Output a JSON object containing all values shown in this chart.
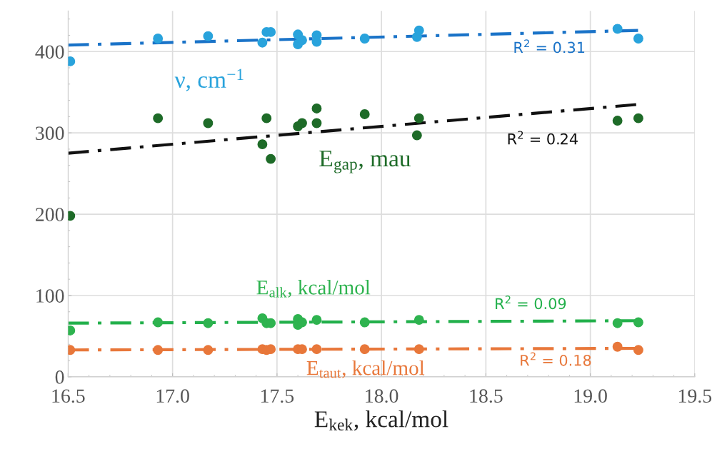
{
  "chart_data": {
    "type": "scatter",
    "xlabel": "E$_{kek}$, kcal/mol",
    "xlim": [
      16.5,
      19.5
    ],
    "ylim": [
      0,
      450
    ],
    "xticks": [
      16.5,
      {
        "value": 17.0,
        "label": "17.0"
      },
      17.5,
      {
        "value": 18.0,
        "label": "18.0"
      },
      18.5,
      {
        "value": 19.0,
        "label": "19.0"
      },
      19.5
    ],
    "yticks": [
      0,
      100,
      200,
      300,
      400
    ],
    "grid": true,
    "marker": "circle",
    "series": [
      {
        "name": "ν, cm$^{−1}$",
        "color": "#29a3dc",
        "x": [
          16.51,
          16.93,
          17.17,
          17.43,
          17.45,
          17.47,
          17.6,
          17.6,
          17.62,
          17.69,
          17.69,
          17.92,
          18.17,
          18.18,
          19.13,
          19.23
        ],
        "values": [
          388,
          416,
          419,
          411,
          424,
          424,
          421,
          409,
          414,
          420,
          412,
          416,
          418,
          426,
          428,
          416
        ]
      },
      {
        "name": "R$^{2}$ = 0.31",
        "type": "line",
        "color": "#1a73c8",
        "line_style": "dashed",
        "marker": "none",
        "x": [
          16.5,
          19.23
        ],
        "values": [
          408,
          426
        ]
      },
      {
        "name": "E$_{gap}$, mau",
        "color": "#1e6b28",
        "x": [
          16.51,
          16.93,
          17.17,
          17.43,
          17.45,
          17.47,
          17.6,
          17.62,
          17.69,
          17.69,
          17.92,
          18.17,
          18.18,
          19.13,
          19.23
        ],
        "values": [
          198,
          318,
          312,
          286,
          318,
          268,
          308,
          312,
          330,
          312,
          323,
          297,
          318,
          315,
          318
        ]
      },
      {
        "name": "R$^{2}$ = 0.24",
        "type": "line",
        "color": "#111111",
        "line_style": "dashed",
        "marker": "none",
        "x": [
          16.5,
          19.23
        ],
        "values": [
          275,
          335
        ]
      },
      {
        "name": "E$_{alk}$, kcal/mol",
        "color": "#2eb34f",
        "x": [
          16.51,
          16.93,
          17.17,
          17.43,
          17.45,
          17.47,
          17.6,
          17.6,
          17.62,
          17.69,
          17.92,
          18.18,
          19.13,
          19.23
        ],
        "values": [
          57,
          67,
          66,
          72,
          66,
          66,
          71,
          64,
          67,
          70,
          67,
          70,
          66,
          67
        ]
      },
      {
        "name": "R$^{2}$ = 0.09",
        "type": "line",
        "color": "#22b04b",
        "line_style": "dashed",
        "marker": "none",
        "x": [
          16.5,
          19.23
        ],
        "values": [
          66,
          69
        ]
      },
      {
        "name": "E$_{taut}$, kcal/mol",
        "color": "#e8773a",
        "x": [
          16.51,
          16.93,
          17.17,
          17.43,
          17.45,
          17.47,
          17.6,
          17.62,
          17.69,
          17.92,
          18.18,
          19.13,
          19.23
        ],
        "values": [
          33,
          33,
          33,
          34,
          33,
          34,
          34,
          34,
          34,
          34,
          34,
          37,
          33
        ]
      },
      {
        "name": "R$^{2}$ = 0.18",
        "type": "line",
        "color": "#e8773a",
        "line_style": "dashed",
        "marker": "none",
        "x": [
          16.5,
          19.23
        ],
        "values": [
          33,
          35
        ]
      }
    ]
  }
}
